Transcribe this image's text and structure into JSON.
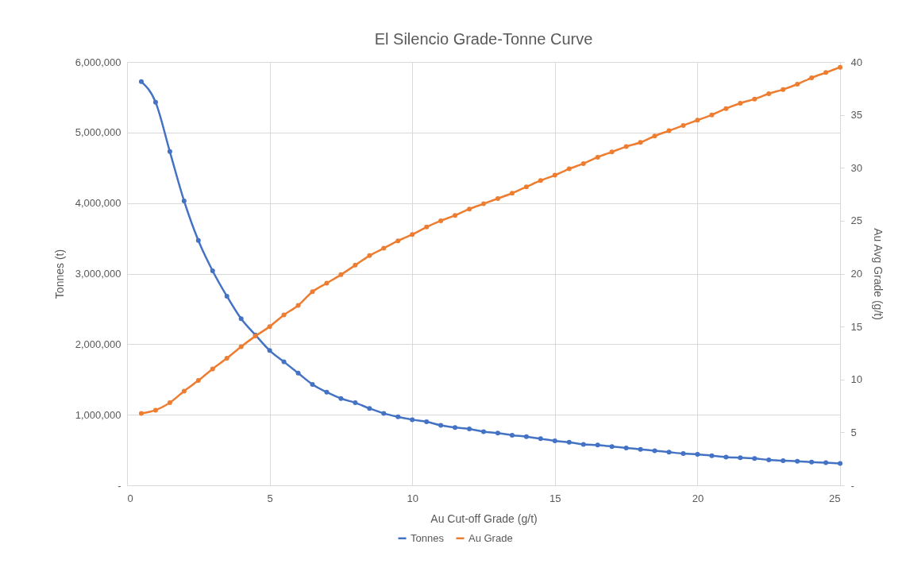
{
  "chart_data": {
    "type": "line",
    "title": "El Silencio Grade-Tonne Curve",
    "xlabel": "Au Cut-off Grade (g/t)",
    "ylabel": "Tonnes (t)",
    "y2label": "Au Avg Grade (g/t)",
    "x": [
      0.5,
      1,
      1.5,
      2,
      2.5,
      3,
      3.5,
      4,
      4.5,
      5,
      5.5,
      6,
      6.5,
      7,
      7.5,
      8,
      8.5,
      9,
      9.5,
      10,
      10.5,
      11,
      11.5,
      12,
      12.5,
      13,
      13.5,
      14,
      14.5,
      15,
      15.5,
      16,
      16.5,
      17,
      17.5,
      18,
      18.5,
      19,
      19.5,
      20,
      20.5,
      21,
      21.5,
      22,
      22.5,
      23,
      23.5,
      24,
      24.5,
      25
    ],
    "series": [
      {
        "name": "Tonnes",
        "color": "#4472c4",
        "values": [
          5720000,
          5430000,
          4730000,
          4030000,
          3470000,
          3040000,
          2680000,
          2360000,
          2130000,
          1910000,
          1750000,
          1590000,
          1430000,
          1320000,
          1230000,
          1170000,
          1090000,
          1020000,
          970000,
          930000,
          900000,
          850000,
          820000,
          800000,
          760000,
          740000,
          710000,
          690000,
          660000,
          630000,
          610000,
          580000,
          570000,
          550000,
          530000,
          510000,
          490000,
          470000,
          450000,
          440000,
          420000,
          400000,
          390000,
          380000,
          360000,
          350000,
          340000,
          330000,
          320000,
          310000
        ]
      },
      {
        "name": "Au Grade",
        "color": "#ed7d31",
        "axis": "y2",
        "values": [
          6.8,
          7.1,
          7.8,
          8.9,
          9.9,
          11.0,
          12.0,
          13.1,
          14.1,
          15.0,
          16.1,
          17.0,
          18.3,
          19.1,
          19.9,
          20.8,
          21.7,
          22.4,
          23.1,
          23.7,
          24.4,
          25.0,
          25.5,
          26.1,
          26.6,
          27.1,
          27.6,
          28.2,
          28.8,
          29.3,
          29.9,
          30.4,
          31.0,
          31.5,
          32.0,
          32.4,
          33.0,
          33.5,
          34.0,
          34.5,
          35.0,
          35.6,
          36.1,
          36.5,
          37.0,
          37.4,
          37.9,
          38.5,
          39.0,
          39.5
        ]
      }
    ],
    "xlim": [
      0,
      25
    ],
    "xticks": [
      0,
      5,
      10,
      15,
      20,
      25
    ],
    "ylim": [
      0,
      6000000
    ],
    "yticks": [
      {
        "value": 0,
        "label": "-"
      },
      {
        "value": 1000000,
        "label": "1,000,000"
      },
      {
        "value": 2000000,
        "label": "2,000,000"
      },
      {
        "value": 3000000,
        "label": "3,000,000"
      },
      {
        "value": 4000000,
        "label": "4,000,000"
      },
      {
        "value": 5000000,
        "label": "5,000,000"
      },
      {
        "value": 6000000,
        "label": "6,000,000"
      }
    ],
    "y2lim": [
      0,
      40
    ],
    "y2ticks": [
      {
        "value": 0,
        "label": "-"
      },
      5,
      10,
      15,
      20,
      25,
      30,
      35,
      40
    ],
    "grid": true,
    "legend": "bottom",
    "marker": "circle",
    "line_style": "solid"
  }
}
